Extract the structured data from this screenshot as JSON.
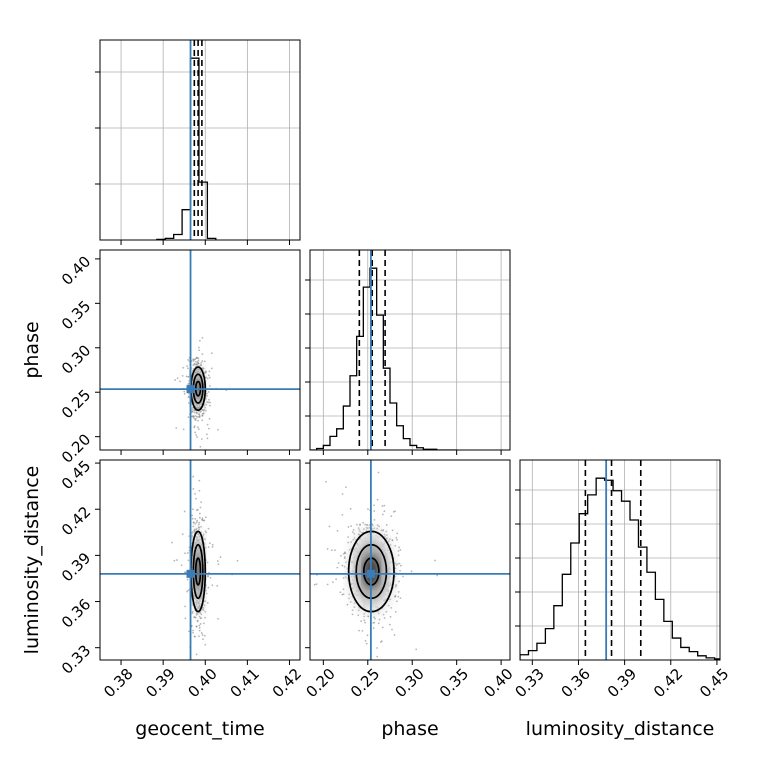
{
  "chart_data": {
    "type": "corner",
    "parameters": [
      "geocent_time",
      "phase",
      "luminosity_distance"
    ],
    "axis_labels": {
      "geocent_time": "geocent_time",
      "phase": "phase",
      "luminosity_distance": "luminosity_distance"
    },
    "ranges": {
      "geocent_time": [
        0.375,
        0.4225
      ],
      "phase": [
        0.185,
        0.41
      ],
      "luminosity_distance": [
        0.322,
        0.452
      ]
    },
    "ticks": {
      "geocent_time": [
        0.38,
        0.39,
        0.4,
        0.41,
        0.42
      ],
      "phase": [
        0.2,
        0.25,
        0.3,
        0.35,
        0.4
      ],
      "luminosity_distance": [
        0.33,
        0.36,
        0.39,
        0.42,
        0.45
      ]
    },
    "tick_labels": {
      "geocent_time": [
        "0.38",
        "0.39",
        "0.40",
        "0.41",
        "0.42"
      ],
      "phase": [
        "0.20",
        "0.25",
        "0.30",
        "0.35",
        "0.40"
      ],
      "luminosity_distance": [
        "0.33",
        "0.36",
        "0.39",
        "0.42",
        "0.45"
      ]
    },
    "truths": {
      "geocent_time": 0.3965,
      "phase": 0.2535,
      "luminosity_distance": 0.378
    },
    "means": {
      "geocent_time": 0.3983,
      "phase": 0.254,
      "luminosity_distance": 0.3795
    },
    "stds": {
      "geocent_time": 0.0009,
      "phase": 0.0135,
      "luminosity_distance": 0.0145
    },
    "quantiles": {
      "geocent_time": [
        0.3974,
        0.3983,
        0.3992
      ],
      "phase": [
        0.2405,
        0.255,
        0.2695
      ],
      "luminosity_distance": [
        0.3645,
        0.3815,
        0.4005
      ]
    },
    "histograms": {
      "geocent_time": {
        "edges": [
          0.3885,
          0.3905,
          0.3925,
          0.3945,
          0.3965,
          0.3985,
          0.4005,
          0.4025
        ],
        "counts": [
          1,
          3,
          10,
          55,
          330,
          105,
          3
        ]
      },
      "phase": {
        "edges": [
          0.185,
          0.1925,
          0.2,
          0.2075,
          0.215,
          0.2225,
          0.23,
          0.2375,
          0.245,
          0.2525,
          0.26,
          0.2675,
          0.275,
          0.2825,
          0.29,
          0.2975,
          0.305,
          0.3125,
          0.32,
          0.3275,
          0.335,
          0.3425,
          0.35
        ],
        "counts": [
          0,
          2,
          6,
          18,
          28,
          58,
          98,
          150,
          215,
          240,
          178,
          108,
          62,
          32,
          15,
          6,
          3,
          1,
          1,
          0,
          0,
          0
        ]
      },
      "luminosity_distance": {
        "edges": [
          0.322,
          0.3275,
          0.333,
          0.3385,
          0.344,
          0.3495,
          0.355,
          0.3605,
          0.366,
          0.3715,
          0.377,
          0.3825,
          0.388,
          0.3935,
          0.399,
          0.4045,
          0.41,
          0.4155,
          0.421,
          0.4265,
          0.432,
          0.4375,
          0.443,
          0.4485,
          0.452
        ],
        "counts": [
          5,
          9,
          16,
          30,
          52,
          82,
          112,
          140,
          158,
          174,
          172,
          162,
          152,
          134,
          108,
          84,
          58,
          37,
          21,
          12,
          8,
          4,
          2,
          1
        ]
      }
    },
    "contour_levels_sigma": [
      0.6,
      1.2,
      1.8
    ],
    "grid": true,
    "colors": {
      "truth": "#3a7cb8",
      "lines": "#000000",
      "grid": "#b0b0b0"
    }
  }
}
